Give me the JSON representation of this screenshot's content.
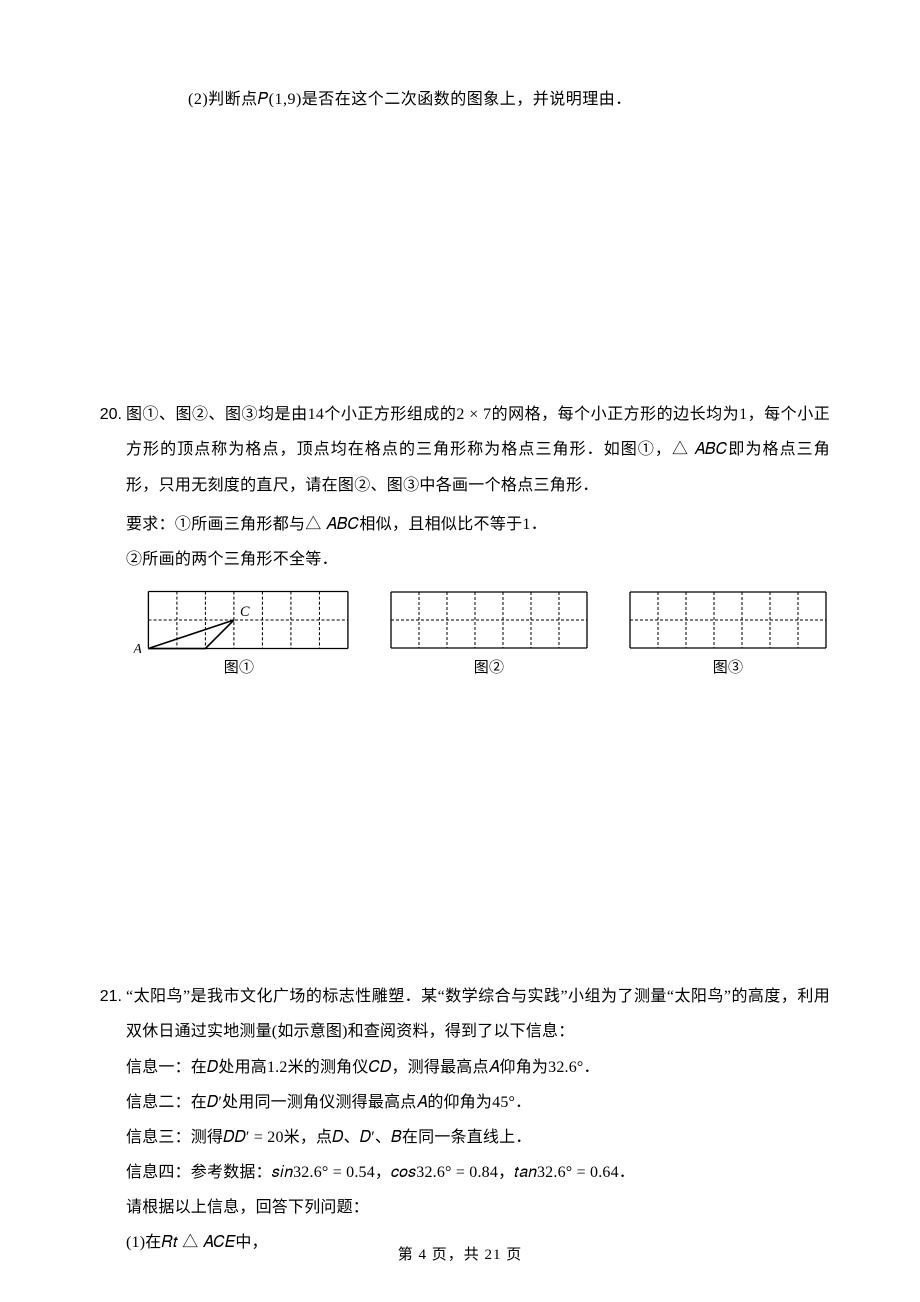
{
  "q19": {
    "part2": "(2)判断点𝑃(1,9)是否在这个二次函数的图象上，并说明理由．"
  },
  "q20": {
    "num": "20.",
    "p1": "图①、图②、图③均是由14个小正方形组成的2 × 7的网格，每个小正方形的边长均为1，每个小正方形的顶点称为格点，顶点均在格点的三角形称为格点三角形．如图①，△ 𝐴𝐵𝐶即为格点三角形，只用无刻度的直尺，请在图②、图③中各画一个格点三角形．",
    "req1": "要求：①所画三角形都与△ 𝐴𝐵𝐶相似，且相似比不等于1．",
    "req2": "②所画的两个三角形不全等．",
    "cap1": "图①",
    "cap2": "图②",
    "cap3": "图③",
    "grid": {
      "cols": 7,
      "rows": 2,
      "cell": 28,
      "stroke": "#000000",
      "dash": "3 2",
      "label_font": 14,
      "tri": {
        "A": [
          0,
          2
        ],
        "B": [
          2,
          2
        ],
        "C": [
          3,
          1
        ]
      }
    }
  },
  "q21": {
    "num": "21.",
    "p1": "“太阳鸟”是我市文化广场的标志性雕塑．某“数学综合与实践”小组为了测量“太阳鸟”的高度，利用双休日通过实地测量(如示意图)和查阅资料，得到了以下信息：",
    "i1": "信息一：在𝐷处用高1.2米的测角仪𝐶𝐷，测得最高点𝐴仰角为32.6°．",
    "i2": "信息二：在𝐷′处用同一测角仪测得最高点𝐴的仰角为45°．",
    "i3": "信息三：测得𝐷𝐷′ = 20米，点𝐷、𝐷′、𝐵在同一条直线上．",
    "i4": "信息四：参考数据：𝑠𝑖𝑛32.6° = 0.54，𝑐𝑜𝑠32.6° = 0.84，𝑡𝑎𝑛32.6° = 0.64．",
    "ask": "请根据以上信息，回答下列问题：",
    "sub1": "(1)在𝑅𝑡 △ 𝐴𝐶𝐸中，"
  },
  "footer": {
    "text": "第 4 页，共 21 页"
  }
}
